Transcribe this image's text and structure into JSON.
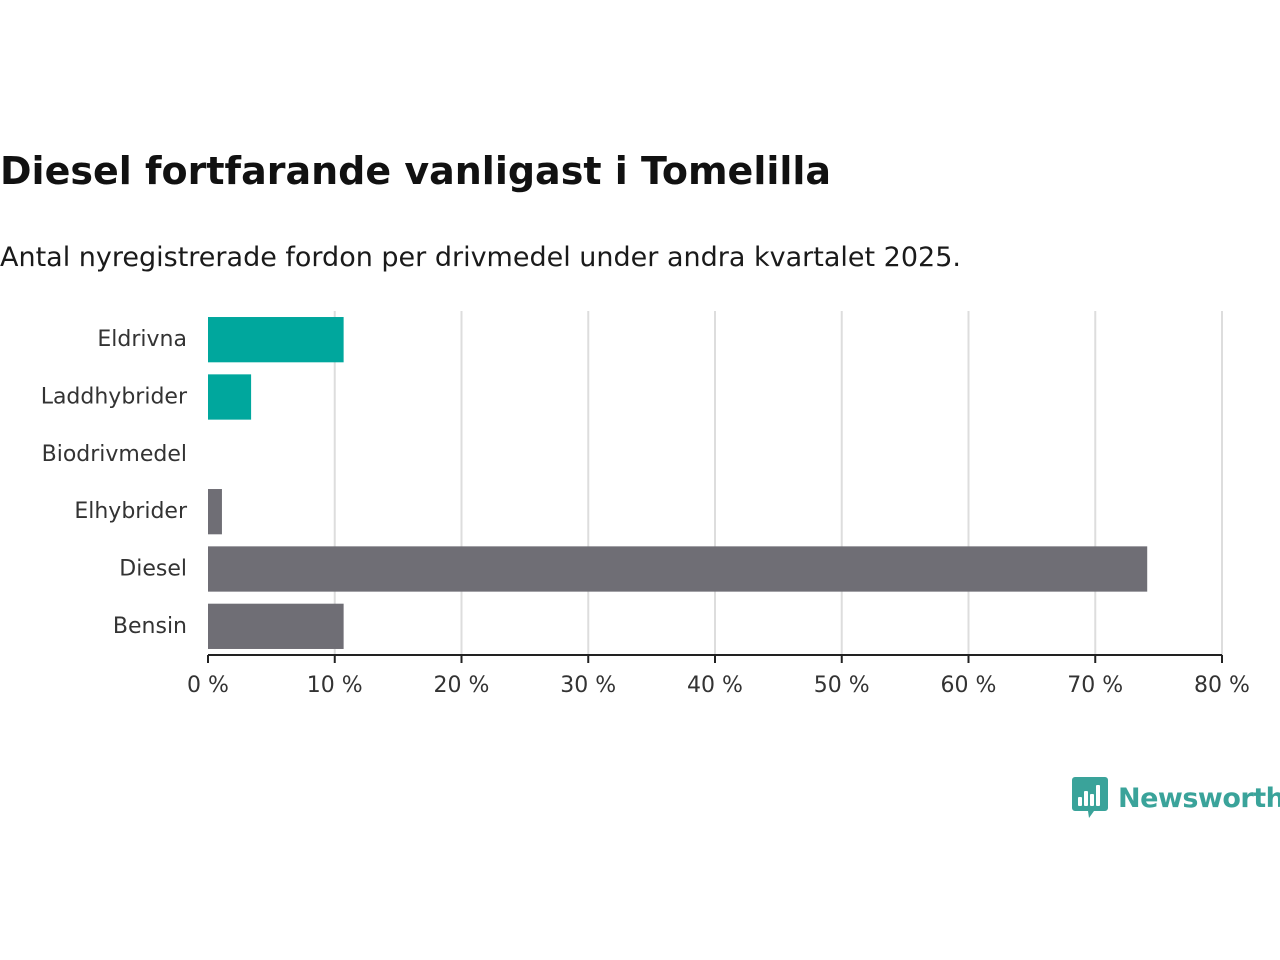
{
  "chart_data": {
    "type": "bar",
    "orientation": "horizontal",
    "title": "Diesel fortfarande vanligast i Tomelilla",
    "subtitle": "Antal nyregistrerade fordon per drivmedel under andra kvartalet 2025.",
    "categories": [
      "Eldrivna",
      "Laddhybrider",
      "Biodrivmedel",
      "Elhybrider",
      "Diesel",
      "Bensin"
    ],
    "values": [
      10.7,
      3.4,
      0,
      1.1,
      74.1,
      10.7
    ],
    "bar_colors": [
      "#00a79d",
      "#00a79d",
      "#6f6e75",
      "#6f6e75",
      "#6f6e75",
      "#6f6e75"
    ],
    "xlim": [
      0,
      80
    ],
    "xticks": [
      0,
      10,
      20,
      30,
      40,
      50,
      60,
      70,
      80
    ],
    "xtick_labels": [
      "0 %",
      "10 %",
      "20 %",
      "30 %",
      "40 %",
      "50 %",
      "60 %",
      "70 %",
      "80 %"
    ],
    "xlabel": "",
    "ylabel": "",
    "grid": "vertical",
    "legend": "none"
  },
  "brand": {
    "name": "Newsworthy",
    "color": "#3aa39a",
    "icon": "newsworthy-logo-icon"
  }
}
